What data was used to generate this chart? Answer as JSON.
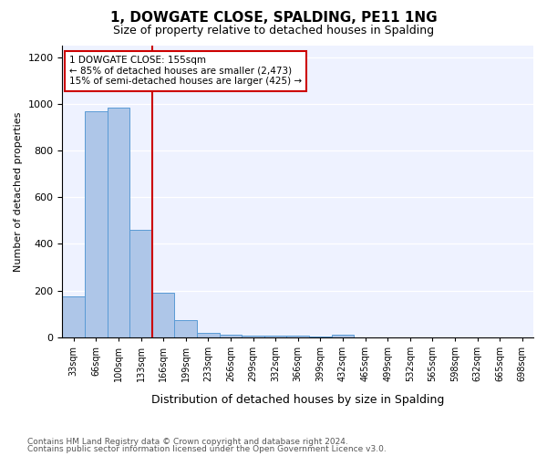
{
  "title": "1, DOWGATE CLOSE, SPALDING, PE11 1NG",
  "subtitle": "Size of property relative to detached houses in Spalding",
  "xlabel": "Distribution of detached houses by size in Spalding",
  "ylabel": "Number of detached properties",
  "footnote1": "Contains HM Land Registry data © Crown copyright and database right 2024.",
  "footnote2": "Contains public sector information licensed under the Open Government Licence v3.0.",
  "annotation_line1": "1 DOWGATE CLOSE: 155sqm",
  "annotation_line2": "← 85% of detached houses are smaller (2,473)",
  "annotation_line3": "15% of semi-detached houses are larger (425) →",
  "red_line_x": 3.5,
  "bins": [
    "33sqm",
    "66sqm",
    "100sqm",
    "133sqm",
    "166sqm",
    "199sqm",
    "233sqm",
    "266sqm",
    "299sqm",
    "332sqm",
    "366sqm",
    "399sqm",
    "432sqm",
    "465sqm",
    "499sqm",
    "532sqm",
    "565sqm",
    "598sqm",
    "632sqm",
    "665sqm",
    "698sqm"
  ],
  "values": [
    175,
    970,
    985,
    460,
    190,
    75,
    20,
    10,
    5,
    5,
    5,
    3,
    12,
    0,
    0,
    0,
    0,
    0,
    0,
    0,
    0
  ],
  "bar_color": "#AEC6E8",
  "bar_edge_color": "#5A9BD5",
  "red_line_color": "#CC0000",
  "background_color": "#EEF2FF",
  "ylim": [
    0,
    1250
  ],
  "yticks": [
    0,
    200,
    400,
    600,
    800,
    1000,
    1200
  ]
}
